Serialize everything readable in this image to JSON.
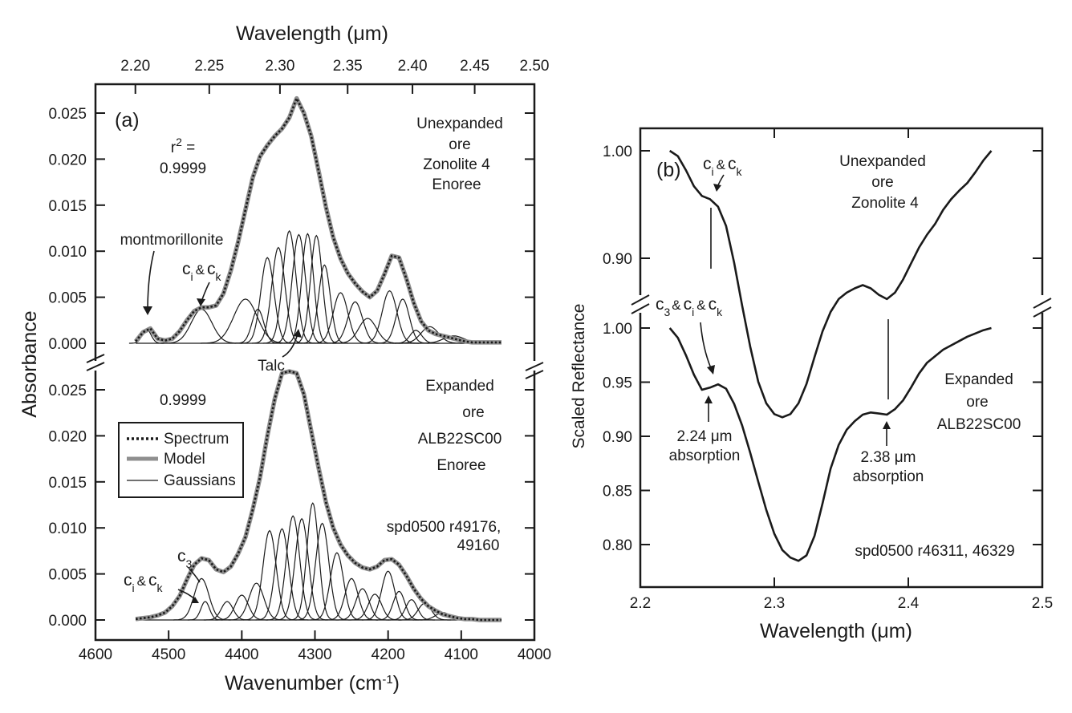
{
  "chart_data": [
    {
      "panel": "(a)",
      "type": "line",
      "top_axis": {
        "label": "Wavelength (μm)",
        "ticks": [
          "2.20",
          "2.25",
          "2.30",
          "2.35",
          "2.40",
          "2.45",
          "2.50"
        ],
        "tick_values": [
          2.2,
          2.25,
          2.3,
          2.35,
          2.4,
          2.45,
          2.5
        ]
      },
      "x_axis": {
        "label": "Wavenumber (cm",
        "label_sup": "-1",
        "label_close": ")",
        "ticks": [
          "4600",
          "4500",
          "4400",
          "4300",
          "4200",
          "4100",
          "4000"
        ],
        "tick_values": [
          4600,
          4500,
          4400,
          4300,
          4200,
          4100,
          4000
        ],
        "range": [
          4600,
          4000
        ],
        "reversed": true
      },
      "y_axis": {
        "label": "Absorbance",
        "ticks": [
          "0.000",
          "0.005",
          "0.010",
          "0.015",
          "0.020",
          "0.025"
        ],
        "tick_values": [
          0,
          0.005,
          0.01,
          0.015,
          0.02,
          0.025
        ],
        "range": [
          -0.001,
          0.027
        ]
      },
      "legend": {
        "position": "lower-left",
        "items": [
          {
            "label": "Spectrum",
            "style": "dotted"
          },
          {
            "label": "Model",
            "style": "thick-gray"
          },
          {
            "label": "Gaussians",
            "style": "thin"
          }
        ]
      },
      "subplots": [
        {
          "name": "upper",
          "labels": [
            "Unexpanded",
            "ore",
            "Zonolite 4",
            "Enoree"
          ],
          "r2_label": "r",
          "r2_sup": "2",
          "r2_eq": " =",
          "r2_value": "0.9999",
          "annotations": {
            "montmorillonite": "montmorillonite",
            "ck_c": "c",
            "ck_i": "i",
            "ck_amp": "&",
            "ck_k": "k",
            "talc": "Talc"
          },
          "spectrum": {
            "x": [
              4545,
              4535,
              4525,
              4515,
              4505,
              4495,
              4485,
              4475,
              4465,
              4455,
              4445,
              4435,
              4425,
              4415,
              4405,
              4395,
              4385,
              4375,
              4365,
              4355,
              4345,
              4335,
              4325,
              4315,
              4305,
              4295,
              4285,
              4275,
              4265,
              4255,
              4245,
              4235,
              4225,
              4215,
              4205,
              4195,
              4185,
              4175,
              4165,
              4155,
              4145,
              4135,
              4125,
              4115,
              4105,
              4095,
              4085,
              4075,
              4065,
              4055,
              4045
            ],
            "y": [
              0.0002,
              0.0012,
              0.0016,
              0.0005,
              0.0003,
              0.0005,
              0.0013,
              0.0025,
              0.0035,
              0.0039,
              0.0039,
              0.0041,
              0.0054,
              0.0079,
              0.011,
              0.0145,
              0.018,
              0.0203,
              0.0215,
              0.0225,
              0.0233,
              0.0245,
              0.0266,
              0.025,
              0.0225,
              0.0187,
              0.0148,
              0.0115,
              0.0092,
              0.0076,
              0.0065,
              0.0056,
              0.005,
              0.0057,
              0.0075,
              0.0095,
              0.0093,
              0.007,
              0.0044,
              0.0024,
              0.0014,
              0.001,
              0.0008,
              0.0006,
              0.0004,
              0.0002,
              0.0001,
              0.0001,
              0.0001,
              0.0001,
              0.0001
            ]
          },
          "gaussians": [
            {
              "center": 4530,
              "height": 0.0015,
              "width": 6
            },
            {
              "center": 4455,
              "height": 0.0037,
              "width": 14
            },
            {
              "center": 4395,
              "height": 0.0048,
              "width": 16
            },
            {
              "center": 4378,
              "height": 0.0037,
              "width": 8
            },
            {
              "center": 4365,
              "height": 0.0093,
              "width": 9
            },
            {
              "center": 4350,
              "height": 0.0104,
              "width": 9
            },
            {
              "center": 4335,
              "height": 0.0122,
              "width": 9
            },
            {
              "center": 4322,
              "height": 0.0118,
              "width": 9
            },
            {
              "center": 4310,
              "height": 0.0119,
              "width": 8
            },
            {
              "center": 4298,
              "height": 0.0117,
              "width": 8
            },
            {
              "center": 4287,
              "height": 0.0085,
              "width": 8
            },
            {
              "center": 4265,
              "height": 0.0055,
              "width": 10
            },
            {
              "center": 4245,
              "height": 0.0045,
              "width": 10
            },
            {
              "center": 4228,
              "height": 0.0027,
              "width": 12
            },
            {
              "center": 4198,
              "height": 0.0057,
              "width": 10
            },
            {
              "center": 4180,
              "height": 0.0048,
              "width": 9
            },
            {
              "center": 4162,
              "height": 0.0014,
              "width": 8
            },
            {
              "center": 4143,
              "height": 0.0018,
              "width": 12
            },
            {
              "center": 4110,
              "height": 0.0008,
              "width": 14
            }
          ]
        },
        {
          "name": "lower",
          "labels": [
            "Expanded",
            "ore",
            "ALB22SC00",
            "Enoree"
          ],
          "r2_value": "0.9999",
          "ids": [
            "spd0500 r49176,",
            "49160"
          ],
          "annotations": {
            "c3_c": "c",
            "c3_sub": "3",
            "ck_c": "c",
            "ck_i": "i",
            "ck_amp": "&",
            "ck_k": "k"
          },
          "spectrum": {
            "x": [
              4545,
              4535,
              4525,
              4515,
              4505,
              4495,
              4485,
              4475,
              4465,
              4455,
              4445,
              4435,
              4425,
              4415,
              4405,
              4395,
              4385,
              4375,
              4365,
              4355,
              4345,
              4335,
              4325,
              4315,
              4305,
              4295,
              4285,
              4275,
              4265,
              4255,
              4245,
              4235,
              4225,
              4215,
              4205,
              4195,
              4185,
              4175,
              4165,
              4155,
              4145,
              4135,
              4125,
              4115,
              4105,
              4095,
              4085,
              4075,
              4065,
              4055,
              4045
            ],
            "y": [
              0.0001,
              0.0002,
              0.0003,
              0.0005,
              0.0008,
              0.0015,
              0.0026,
              0.0044,
              0.006,
              0.0067,
              0.0065,
              0.0055,
              0.0052,
              0.0058,
              0.0072,
              0.009,
              0.012,
              0.0155,
              0.02,
              0.024,
              0.0268,
              0.027,
              0.0268,
              0.0245,
              0.0205,
              0.0165,
              0.0128,
              0.01,
              0.0082,
              0.007,
              0.0062,
              0.0057,
              0.0055,
              0.0058,
              0.0065,
              0.0066,
              0.006,
              0.0048,
              0.0034,
              0.0023,
              0.0015,
              0.001,
              0.0006,
              0.0004,
              0.0002,
              0.0001,
              0.0001,
              0.0,
              0.0,
              0.0,
              0.0
            ]
          },
          "gaussians": [
            {
              "center": 4455,
              "height": 0.0045,
              "width": 10
            },
            {
              "center": 4450,
              "height": 0.002,
              "width": 6
            },
            {
              "center": 4420,
              "height": 0.002,
              "width": 8
            },
            {
              "center": 4400,
              "height": 0.0027,
              "width": 9
            },
            {
              "center": 4380,
              "height": 0.004,
              "width": 10
            },
            {
              "center": 4362,
              "height": 0.0097,
              "width": 9
            },
            {
              "center": 4345,
              "height": 0.0099,
              "width": 9
            },
            {
              "center": 4330,
              "height": 0.0113,
              "width": 9
            },
            {
              "center": 4318,
              "height": 0.011,
              "width": 9
            },
            {
              "center": 4303,
              "height": 0.0127,
              "width": 8
            },
            {
              "center": 4290,
              "height": 0.0105,
              "width": 9
            },
            {
              "center": 4270,
              "height": 0.0073,
              "width": 9
            },
            {
              "center": 4250,
              "height": 0.0045,
              "width": 9
            },
            {
              "center": 4235,
              "height": 0.0034,
              "width": 9
            },
            {
              "center": 4218,
              "height": 0.0028,
              "width": 9
            },
            {
              "center": 4200,
              "height": 0.0053,
              "width": 9
            },
            {
              "center": 4185,
              "height": 0.0031,
              "width": 8
            },
            {
              "center": 4168,
              "height": 0.0022,
              "width": 8
            },
            {
              "center": 4150,
              "height": 0.0018,
              "width": 9
            },
            {
              "center": 4125,
              "height": 0.0008,
              "width": 10
            }
          ]
        }
      ]
    },
    {
      "panel": "(b)",
      "type": "line",
      "x_axis": {
        "label": "Wavelength (μm)",
        "ticks": [
          "2.2",
          "2.3",
          "2.4",
          "2.5"
        ],
        "tick_values": [
          2.2,
          2.3,
          2.4,
          2.5
        ],
        "range": [
          2.2,
          2.5
        ]
      },
      "y_axis": {
        "label": "Scaled Reflectance",
        "upper_ticks": [
          "1.00",
          "0.90"
        ],
        "upper_tick_values": [
          1.0,
          0.9
        ],
        "lower_ticks": [
          "1.00",
          "0.95",
          "0.90",
          "0.85",
          "0.80"
        ],
        "lower_tick_values": [
          1.0,
          0.95,
          0.9,
          0.85,
          0.8
        ]
      },
      "ids": "spd0500 r46311, 46329",
      "upper": {
        "labels": [
          "Unexpanded",
          "ore",
          "Zonolite 4"
        ],
        "annotations": {
          "ck_c": "c",
          "ck_i": "i",
          "ck_amp": "&",
          "ck_k": "k"
        },
        "x": [
          2.222,
          2.228,
          2.234,
          2.24,
          2.246,
          2.252,
          2.258,
          2.264,
          2.27,
          2.276,
          2.282,
          2.288,
          2.294,
          2.3,
          2.306,
          2.312,
          2.318,
          2.324,
          2.33,
          2.336,
          2.342,
          2.348,
          2.354,
          2.36,
          2.366,
          2.372,
          2.378,
          2.384,
          2.39,
          2.396,
          2.402,
          2.408,
          2.414,
          2.42,
          2.426,
          2.432,
          2.438,
          2.444,
          2.45,
          2.456,
          2.462
        ],
        "y": [
          1.0,
          0.995,
          0.982,
          0.967,
          0.958,
          0.955,
          0.948,
          0.93,
          0.896,
          0.856,
          0.818,
          0.785,
          0.765,
          0.755,
          0.752,
          0.755,
          0.765,
          0.783,
          0.808,
          0.832,
          0.85,
          0.862,
          0.868,
          0.872,
          0.875,
          0.872,
          0.866,
          0.862,
          0.868,
          0.88,
          0.895,
          0.91,
          0.922,
          0.932,
          0.945,
          0.955,
          0.963,
          0.97,
          0.98,
          0.991,
          1.0
        ]
      },
      "lower": {
        "labels": [
          "Expanded",
          "ore",
          "ALB22SC00"
        ],
        "annotations": {
          "c3_c": "c",
          "c3_sub": "3",
          "c3_amp": "&",
          "ck_c": "c",
          "ck_i": "i",
          "ck_amp": "&",
          "ck_k": "k",
          "abs1_a": "2.24 μm",
          "abs1_b": "absorption",
          "abs2_a": "2.38 μm",
          "abs2_b": "absorption"
        },
        "x": [
          2.222,
          2.228,
          2.234,
          2.24,
          2.246,
          2.252,
          2.258,
          2.264,
          2.27,
          2.276,
          2.282,
          2.288,
          2.294,
          2.3,
          2.306,
          2.312,
          2.318,
          2.324,
          2.33,
          2.336,
          2.342,
          2.348,
          2.354,
          2.36,
          2.366,
          2.372,
          2.378,
          2.384,
          2.39,
          2.396,
          2.402,
          2.408,
          2.414,
          2.42,
          2.426,
          2.432,
          2.438,
          2.444,
          2.45,
          2.456,
          2.462
        ],
        "y": [
          1.0,
          0.991,
          0.975,
          0.957,
          0.943,
          0.945,
          0.948,
          0.944,
          0.93,
          0.91,
          0.885,
          0.858,
          0.832,
          0.81,
          0.795,
          0.788,
          0.785,
          0.79,
          0.808,
          0.838,
          0.87,
          0.892,
          0.906,
          0.914,
          0.92,
          0.922,
          0.921,
          0.92,
          0.925,
          0.933,
          0.945,
          0.958,
          0.968,
          0.974,
          0.98,
          0.984,
          0.988,
          0.992,
          0.995,
          0.998,
          1.0
        ]
      }
    }
  ]
}
